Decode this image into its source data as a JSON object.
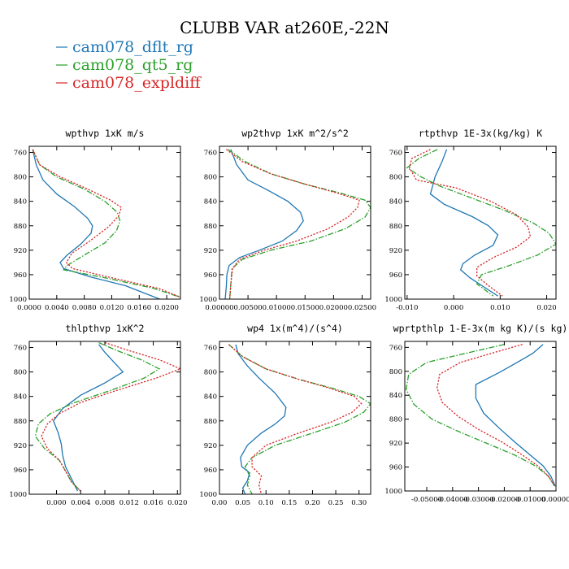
{
  "figure": {
    "title": "CLUBB VAR at260E,-22N"
  },
  "legend": [
    {
      "label": "cam078_dflt_rg",
      "color": "#1f77b4",
      "dash": "solid"
    },
    {
      "label": "cam078_qt5_rg",
      "color": "#2ca02c",
      "dash": "dashdot"
    },
    {
      "label": "cam078_expldiff",
      "color": "#d62728",
      "dash": "dotted"
    }
  ],
  "chart_data": [
    {
      "type": "line",
      "title": "wpthvp  1xK m/s",
      "xlim": [
        0,
        0.022
      ],
      "ylim": [
        1000,
        750
      ],
      "xticks": [
        {
          "v": 0,
          "l": "0.0000"
        },
        {
          "v": 0.004,
          "l": "0.0040"
        },
        {
          "v": 0.008,
          "l": "0.0080"
        },
        {
          "v": 0.012,
          "l": "0.0120"
        },
        {
          "v": 0.016,
          "l": "0.0160"
        },
        {
          "v": 0.02,
          "l": "0.0200"
        }
      ],
      "yticks": [
        760,
        800,
        840,
        880,
        920,
        960,
        1000
      ],
      "series": [
        {
          "color": "#1f77b4",
          "dash": "solid",
          "x": [
            0.0005,
            0.001,
            0.002,
            0.004,
            0.0065,
            0.0085,
            0.0092,
            0.009,
            0.0075,
            0.0055,
            0.0045,
            0.005,
            0.009,
            0.014,
            0.019
          ],
          "y": [
            755,
            780,
            805,
            828,
            848,
            868,
            880,
            892,
            910,
            928,
            940,
            950,
            964,
            978,
            1000
          ]
        },
        {
          "color": "#2ca02c",
          "dash": "dashdot",
          "x": [
            0.0005,
            0.0015,
            0.004,
            0.008,
            0.011,
            0.0128,
            0.0132,
            0.0127,
            0.011,
            0.008,
            0.0055,
            0.005,
            0.011,
            0.018,
            0.022
          ],
          "y": [
            755,
            780,
            800,
            820,
            840,
            858,
            872,
            888,
            908,
            928,
            945,
            952,
            965,
            982,
            997
          ]
        },
        {
          "color": "#d62728",
          "dash": "dotted",
          "x": [
            0.0005,
            0.0015,
            0.0045,
            0.0085,
            0.0118,
            0.0134,
            0.013,
            0.0115,
            0.0088,
            0.0062,
            0.0054,
            0.0063,
            0.012,
            0.019,
            0.022
          ],
          "y": [
            755,
            780,
            800,
            820,
            838,
            850,
            864,
            882,
            905,
            925,
            940,
            950,
            965,
            983,
            997
          ]
        }
      ]
    },
    {
      "type": "line",
      "title": "wp2thvp  1xK m^2/s^2",
      "xlim": [
        0,
        0.0265
      ],
      "ylim": [
        1000,
        750
      ],
      "xticks": [
        {
          "v": 0,
          "l": "0.00000"
        },
        {
          "v": 0.005,
          "l": "0.00500"
        },
        {
          "v": 0.01,
          "l": "0.01000"
        },
        {
          "v": 0.015,
          "l": "0.01500"
        },
        {
          "v": 0.02,
          "l": "0.02000"
        },
        {
          "v": 0.025,
          "l": "0.02500"
        }
      ],
      "yticks": [
        760,
        800,
        840,
        880,
        920,
        960,
        1000
      ],
      "series": [
        {
          "color": "#1f77b4",
          "dash": "solid",
          "x": [
            0.002,
            0.003,
            0.005,
            0.0085,
            0.012,
            0.0142,
            0.0147,
            0.0135,
            0.011,
            0.007,
            0.0035,
            0.0017,
            0.0013,
            0.0012,
            0.001
          ],
          "y": [
            755,
            780,
            805,
            822,
            840,
            858,
            872,
            888,
            905,
            920,
            932,
            945,
            960,
            980,
            1000
          ]
        },
        {
          "color": "#2ca02c",
          "dash": "dashdot",
          "x": [
            0.0015,
            0.0045,
            0.009,
            0.015,
            0.021,
            0.0255,
            0.0265,
            0.0255,
            0.022,
            0.016,
            0.009,
            0.004,
            0.0022,
            0.002,
            0.0018
          ],
          "y": [
            755,
            775,
            795,
            812,
            826,
            838,
            850,
            866,
            885,
            905,
            920,
            935,
            950,
            975,
            1000
          ]
        },
        {
          "color": "#d62728",
          "dash": "dotted",
          "x": [
            0.0012,
            0.004,
            0.009,
            0.015,
            0.0205,
            0.0245,
            0.0242,
            0.0225,
            0.019,
            0.0135,
            0.0078,
            0.0035,
            0.0023,
            0.002,
            0.0018
          ],
          "y": [
            755,
            775,
            795,
            812,
            826,
            838,
            850,
            866,
            885,
            905,
            920,
            935,
            950,
            975,
            1000
          ]
        }
      ]
    },
    {
      "type": "line",
      "title": "rtpthvp  1E-3x(kg/kg) K",
      "xlim": [
        -0.0105,
        0.022
      ],
      "ylim": [
        1000,
        750
      ],
      "xticks": [
        {
          "v": -0.01,
          "l": "-0.010"
        },
        {
          "v": 0.0,
          "l": "0.000"
        },
        {
          "v": 0.01,
          "l": "0.010"
        },
        {
          "v": 0.02,
          "l": "0.020"
        }
      ],
      "yticks": [
        760,
        800,
        840,
        880,
        920,
        960,
        1000
      ],
      "series": [
        {
          "color": "#1f77b4",
          "dash": "solid",
          "x": [
            -0.0015,
            -0.0025,
            -0.004,
            -0.005,
            -0.002,
            0.004,
            0.0075,
            0.0095,
            0.0085,
            0.0045,
            0.002,
            0.0015,
            0.0035,
            0.0065,
            0.0095
          ],
          "y": [
            755,
            775,
            800,
            828,
            845,
            865,
            880,
            895,
            912,
            928,
            942,
            952,
            965,
            980,
            995
          ]
        },
        {
          "color": "#2ca02c",
          "dash": "dashdot",
          "x": [
            -0.0035,
            -0.0075,
            -0.01,
            -0.007,
            -0.003,
            0.004,
            0.011,
            0.017,
            0.0205,
            0.022,
            0.018,
            0.012,
            0.006,
            0.005,
            0.0085
          ],
          "y": [
            755,
            770,
            785,
            800,
            815,
            835,
            855,
            875,
            892,
            910,
            928,
            945,
            960,
            975,
            995
          ]
        },
        {
          "color": "#d62728",
          "dash": "dotted",
          "x": [
            -0.005,
            -0.009,
            -0.0095,
            -0.008,
            0.0005,
            0.008,
            0.0135,
            0.016,
            0.0165,
            0.0135,
            0.0085,
            0.005,
            0.005,
            0.0075,
            0.0105
          ],
          "y": [
            755,
            770,
            785,
            805,
            818,
            840,
            862,
            882,
            898,
            915,
            932,
            948,
            962,
            978,
            995
          ]
        }
      ]
    },
    {
      "type": "line",
      "title": "thlpthvp  1xK^2",
      "xlim": [
        -0.0045,
        0.0205
      ],
      "ylim": [
        1000,
        750
      ],
      "xticks": [
        {
          "v": 0,
          "l": "0.000"
        },
        {
          "v": 0.004,
          "l": "0.004"
        },
        {
          "v": 0.008,
          "l": "0.008"
        },
        {
          "v": 0.012,
          "l": "0.012"
        },
        {
          "v": 0.016,
          "l": "0.016"
        },
        {
          "v": 0.02,
          "l": "0.020"
        }
      ],
      "yticks": [
        760,
        800,
        840,
        880,
        920,
        960,
        1000
      ],
      "series": [
        {
          "color": "#1f77b4",
          "dash": "solid",
          "x": [
            0.007,
            0.008,
            0.0095,
            0.011,
            0.008,
            0.004,
            0.001,
            -0.0005,
            0.0003,
            0.0008,
            0.001,
            0.0015,
            0.0025,
            0.0035
          ],
          "y": [
            755,
            768,
            784,
            800,
            818,
            838,
            860,
            880,
            900,
            918,
            935,
            955,
            975,
            995
          ]
        },
        {
          "color": "#2ca02c",
          "dash": "dashdot",
          "x": [
            0.007,
            0.01,
            0.014,
            0.017,
            0.0145,
            0.009,
            0.003,
            -0.001,
            -0.003,
            -0.0035,
            -0.002,
            0.0005,
            0.0015,
            0.0025,
            0.004
          ],
          "y": [
            752,
            765,
            780,
            795,
            810,
            830,
            850,
            868,
            885,
            905,
            925,
            945,
            962,
            980,
            995
          ]
        },
        {
          "color": "#d62728",
          "dash": "dotted",
          "x": [
            0.008,
            0.012,
            0.017,
            0.0205,
            0.0165,
            0.01,
            0.004,
            0.0005,
            -0.0015,
            -0.0025,
            -0.0015,
            0.0005,
            0.0015,
            0.0025,
            0.004
          ],
          "y": [
            752,
            765,
            780,
            795,
            810,
            830,
            850,
            868,
            885,
            905,
            925,
            945,
            962,
            980,
            995
          ]
        }
      ]
    },
    {
      "type": "line",
      "title": "wp4  1x(m^4)/(s^4)",
      "xlim": [
        0,
        0.325
      ],
      "ylim": [
        1000,
        750
      ],
      "xticks": [
        {
          "v": 0,
          "l": "0.00"
        },
        {
          "v": 0.05,
          "l": "0.05"
        },
        {
          "v": 0.1,
          "l": "0.10"
        },
        {
          "v": 0.15,
          "l": "0.15"
        },
        {
          "v": 0.2,
          "l": "0.20"
        },
        {
          "v": 0.25,
          "l": "0.25"
        },
        {
          "v": 0.3,
          "l": "0.30"
        }
      ],
      "yticks": [
        760,
        800,
        840,
        880,
        920,
        960,
        1000
      ],
      "series": [
        {
          "color": "#1f77b4",
          "dash": "solid",
          "x": [
            0.035,
            0.04,
            0.06,
            0.085,
            0.12,
            0.143,
            0.14,
            0.12,
            0.09,
            0.06,
            0.045,
            0.048,
            0.065,
            0.06,
            0.05,
            0.055
          ],
          "y": [
            755,
            770,
            790,
            810,
            835,
            858,
            872,
            885,
            900,
            920,
            940,
            955,
            965,
            978,
            990,
            1000
          ]
        },
        {
          "color": "#2ca02c",
          "dash": "dashdot",
          "x": [
            0.02,
            0.05,
            0.1,
            0.17,
            0.24,
            0.3,
            0.325,
            0.31,
            0.27,
            0.2,
            0.12,
            0.07,
            0.055,
            0.065,
            0.06,
            0.07
          ],
          "y": [
            755,
            775,
            795,
            812,
            826,
            840,
            852,
            866,
            882,
            900,
            920,
            940,
            955,
            970,
            985,
            1000
          ]
        },
        {
          "color": "#d62728",
          "dash": "dotted",
          "x": [
            0.02,
            0.05,
            0.1,
            0.17,
            0.235,
            0.29,
            0.305,
            0.285,
            0.24,
            0.17,
            0.1,
            0.07,
            0.07,
            0.09,
            0.085,
            0.09
          ],
          "y": [
            755,
            775,
            795,
            812,
            826,
            840,
            852,
            866,
            882,
            900,
            920,
            940,
            955,
            970,
            985,
            1000
          ]
        }
      ]
    },
    {
      "type": "line",
      "title": "wprtpthlp  1-E-3x(m kg K)/(s kg)",
      "xlim": [
        -0.0585,
        0.0
      ],
      "ylim": [
        1000,
        750
      ],
      "xticks": [
        {
          "v": -0.05,
          "l": "-0.05000"
        },
        {
          "v": -0.04,
          "l": "-0.04000"
        },
        {
          "v": -0.03,
          "l": "-0.03000"
        },
        {
          "v": -0.02,
          "l": "-0.02000"
        },
        {
          "v": -0.01,
          "l": "-0.01000"
        },
        {
          "v": 0.0,
          "l": "0.00000"
        }
      ],
      "yticks": [
        760,
        800,
        840,
        880,
        920,
        960,
        1000
      ],
      "series": [
        {
          "color": "#1f77b4",
          "dash": "solid",
          "x": [
            -0.005,
            -0.009,
            -0.015,
            -0.022,
            -0.031,
            -0.031,
            -0.028,
            -0.022,
            -0.016,
            -0.01,
            -0.005,
            -0.002,
            -0.0003
          ],
          "y": [
            755,
            770,
            785,
            802,
            822,
            845,
            870,
            895,
            918,
            940,
            958,
            975,
            992
          ]
        },
        {
          "color": "#2ca02c",
          "dash": "dashdot",
          "x": [
            -0.02,
            -0.035,
            -0.05,
            -0.057,
            -0.058,
            -0.055,
            -0.048,
            -0.038,
            -0.027,
            -0.016,
            -0.008,
            -0.003,
            -0.0005
          ],
          "y": [
            755,
            770,
            785,
            805,
            830,
            855,
            880,
            900,
            920,
            940,
            958,
            975,
            992
          ]
        },
        {
          "color": "#d62728",
          "dash": "dotted",
          "x": [
            -0.013,
            -0.025,
            -0.037,
            -0.045,
            -0.046,
            -0.044,
            -0.038,
            -0.03,
            -0.021,
            -0.013,
            -0.007,
            -0.003,
            -0.0005
          ],
          "y": [
            755,
            770,
            785,
            805,
            828,
            852,
            875,
            897,
            918,
            940,
            958,
            975,
            992
          ]
        }
      ]
    }
  ]
}
